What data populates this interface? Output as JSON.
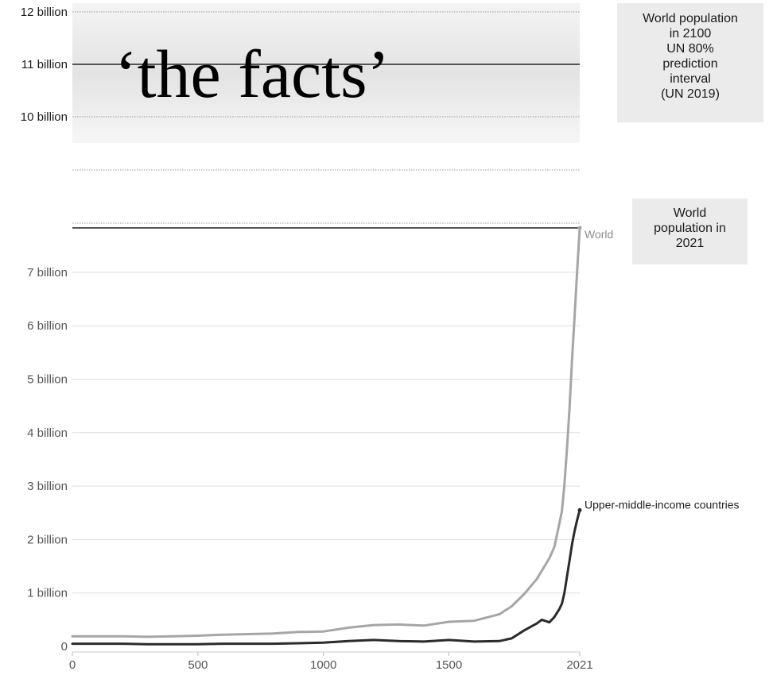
{
  "headline": "‘the facts’",
  "annotations": {
    "un_2100": "World population\nin 2100\nUN 80%\nprediction\ninterval\n(UN 2019)",
    "world_2021": "World\npopulation in\n2021"
  },
  "colors": {
    "world_line": "#a6a6a6",
    "upper_middle_line": "#2b2b2b",
    "reference_line": "#555555",
    "prediction_band": "#e3e3e3",
    "annotation_box": "#ebebeb"
  },
  "chart_data": {
    "type": "line",
    "title": "",
    "xlabel": "",
    "ylabel": "",
    "xlim": [
      0,
      2021
    ],
    "x_ticks": [
      {
        "value": 0,
        "label": "0"
      },
      {
        "value": 500,
        "label": "500"
      },
      {
        "value": 1000,
        "label": "1000"
      },
      {
        "value": 1500,
        "label": "1500"
      },
      {
        "value": 2021,
        "label": "2021"
      }
    ],
    "y_ticks": [
      {
        "value": 0,
        "label": "0"
      },
      {
        "value": 1,
        "label": "1 billion"
      },
      {
        "value": 2,
        "label": "2 billion"
      },
      {
        "value": 3,
        "label": "3 billion"
      },
      {
        "value": 4,
        "label": "4 billion"
      },
      {
        "value": 5,
        "label": "5 billion"
      },
      {
        "value": 6,
        "label": "6 billion"
      },
      {
        "value": 7,
        "label": "7 billion"
      }
    ],
    "y_ticks_upper": [
      {
        "value": 10,
        "label": "10 billion"
      },
      {
        "value": 11,
        "label": "11 billion"
      },
      {
        "value": 12,
        "label": "12 billion"
      }
    ],
    "series": [
      {
        "name": "World",
        "x": [
          0,
          100,
          200,
          300,
          400,
          500,
          600,
          700,
          800,
          900,
          1000,
          1100,
          1200,
          1300,
          1400,
          1500,
          1600,
          1700,
          1750,
          1800,
          1850,
          1900,
          1920,
          1940,
          1950,
          1960,
          1970,
          1980,
          1990,
          2000,
          2010,
          2021
        ],
        "values": [
          0.19,
          0.19,
          0.19,
          0.18,
          0.19,
          0.2,
          0.22,
          0.23,
          0.24,
          0.27,
          0.28,
          0.35,
          0.4,
          0.41,
          0.39,
          0.46,
          0.48,
          0.6,
          0.75,
          0.98,
          1.26,
          1.65,
          1.86,
          2.3,
          2.53,
          3.02,
          3.69,
          4.44,
          5.33,
          6.14,
          6.96,
          7.9
        ]
      },
      {
        "name": "Upper-middle-income countries",
        "x": [
          0,
          100,
          200,
          300,
          400,
          500,
          600,
          700,
          800,
          900,
          1000,
          1100,
          1200,
          1300,
          1400,
          1500,
          1600,
          1700,
          1750,
          1800,
          1850,
          1870,
          1900,
          1920,
          1940,
          1950,
          1960,
          1970,
          1980,
          1990,
          2000,
          2010,
          2021
        ],
        "values": [
          0.05,
          0.05,
          0.05,
          0.04,
          0.04,
          0.04,
          0.05,
          0.05,
          0.05,
          0.06,
          0.07,
          0.1,
          0.12,
          0.1,
          0.09,
          0.12,
          0.09,
          0.1,
          0.15,
          0.3,
          0.43,
          0.5,
          0.45,
          0.55,
          0.7,
          0.8,
          1.0,
          1.3,
          1.6,
          1.9,
          2.15,
          2.35,
          2.55
        ]
      }
    ],
    "reference_lines": [
      {
        "value": 7.9,
        "label": "World"
      },
      {
        "value": 11.0
      }
    ],
    "prediction_interval": [
      9.4,
      12.7
    ],
    "grid": true,
    "legend": "none"
  }
}
